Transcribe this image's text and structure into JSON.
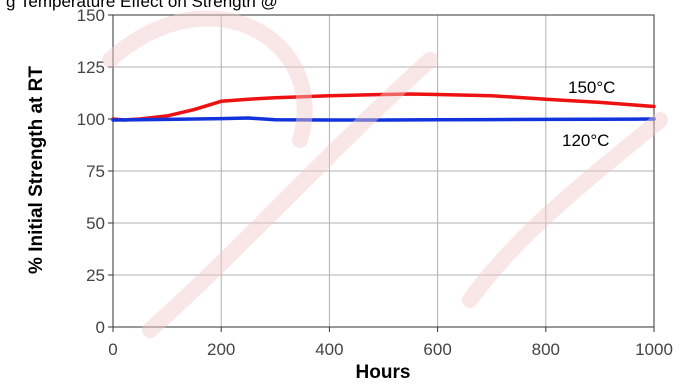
{
  "header": {
    "partial_title": "g  Temperature Effect on Strength @"
  },
  "watermark": {
    "color": "#f2c7c7"
  },
  "chart_data": {
    "type": "line",
    "title": "",
    "xlabel": "Hours",
    "ylabel": "% Initial Strength at RT",
    "xlim": [
      0,
      1000
    ],
    "ylim": [
      0,
      150
    ],
    "xticks": [
      0,
      200,
      400,
      600,
      800,
      1000
    ],
    "yticks": [
      0,
      25,
      50,
      75,
      100,
      125,
      150
    ],
    "xtick_labels": [
      "0",
      "200",
      "400",
      "600",
      "800",
      "1000"
    ],
    "ytick_labels": [
      "0",
      "25",
      "50",
      "75",
      "100",
      "125",
      "150"
    ],
    "grid": true,
    "legend": "inline labels near line ends",
    "series": [
      {
        "name": "150°C",
        "color": "#ee1111",
        "x": [
          0,
          20,
          50,
          100,
          150,
          200,
          250,
          300,
          400,
          500,
          550,
          600,
          700,
          800,
          900,
          1000
        ],
        "y": [
          100,
          99.5,
          100,
          101.5,
          104.5,
          108.5,
          109.5,
          110.2,
          111.2,
          111.8,
          112,
          111.8,
          111.2,
          109.5,
          108,
          106
        ]
      },
      {
        "name": "120°C",
        "color": "#1133dd",
        "x": [
          0,
          100,
          200,
          250,
          300,
          400,
          500,
          600,
          700,
          800,
          900,
          1000
        ],
        "y": [
          99.5,
          99.8,
          100.2,
          100.5,
          99.6,
          99.5,
          99.5,
          99.6,
          99.7,
          99.8,
          99.9,
          100
        ]
      }
    ]
  }
}
